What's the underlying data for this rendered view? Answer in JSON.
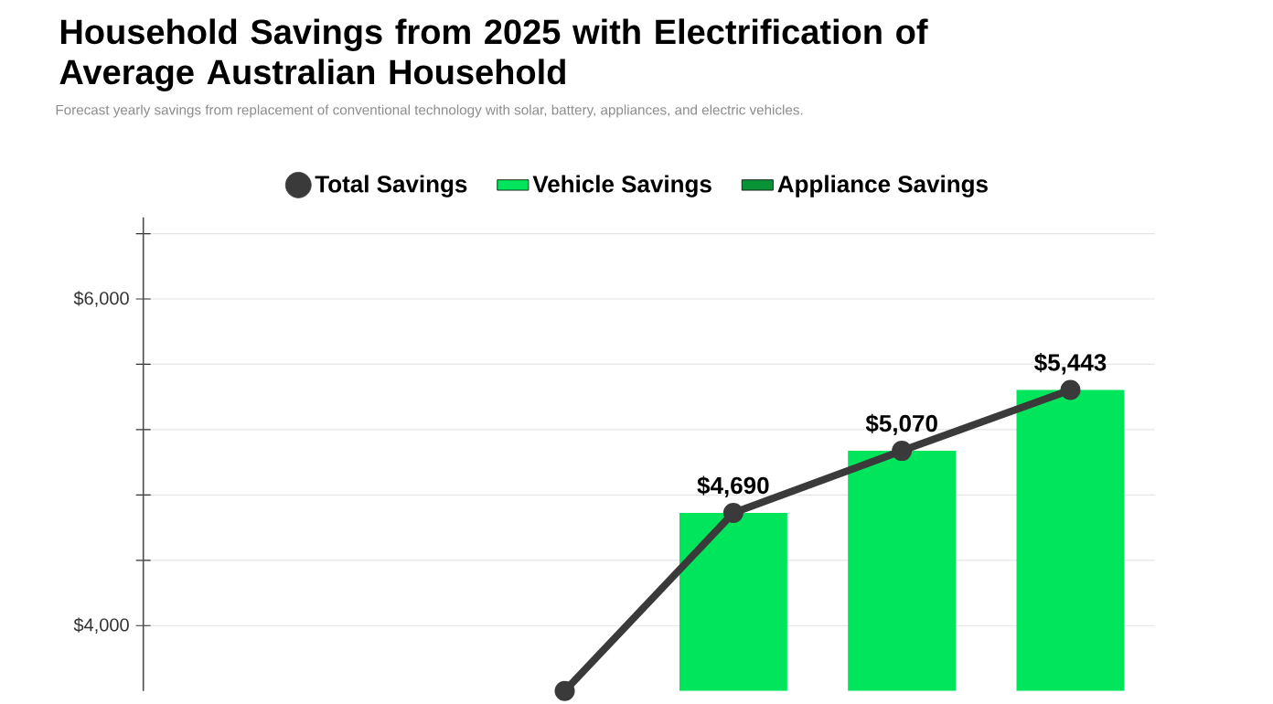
{
  "chart_data": {
    "type": "bar",
    "title": "Household Savings from 2025 with Electrification of Average Australian Household",
    "subtitle": "Forecast yearly savings from replacement of conventional technology with solar, battery, appliances, and electric vehicles.",
    "categories": [
      null,
      null,
      null,
      null,
      null,
      null
    ],
    "series": [
      {
        "name": "Total Savings",
        "type": "line",
        "color": "#3a3a3a",
        "marker": "circle",
        "values": [
          null,
          null,
          3600,
          4690,
          5070,
          5443
        ],
        "value_labels": [
          null,
          null,
          null,
          "$4,690",
          "$5,070",
          "$5,443"
        ]
      },
      {
        "name": "Vehicle Savings",
        "color": "#00e55c",
        "values": [
          null,
          null,
          null,
          4690,
          5070,
          5443
        ]
      },
      {
        "name": "Appliance Savings",
        "color": "#0a9336",
        "values": [
          null,
          null,
          null,
          null,
          null,
          null
        ]
      }
    ],
    "ylim": [
      3600,
      6500
    ],
    "yticks": [
      {
        "value": 4000,
        "label": "$4,000"
      },
      {
        "value": 4400,
        "label": null
      },
      {
        "value": 4800,
        "label": null
      },
      {
        "value": 5200,
        "label": null
      },
      {
        "value": 5600,
        "label": null
      },
      {
        "value": 6000,
        "label": "$6,000"
      },
      {
        "value": 6400,
        "label": null
      }
    ],
    "grid": "y",
    "legend": "top",
    "tick_labels": "y"
  }
}
